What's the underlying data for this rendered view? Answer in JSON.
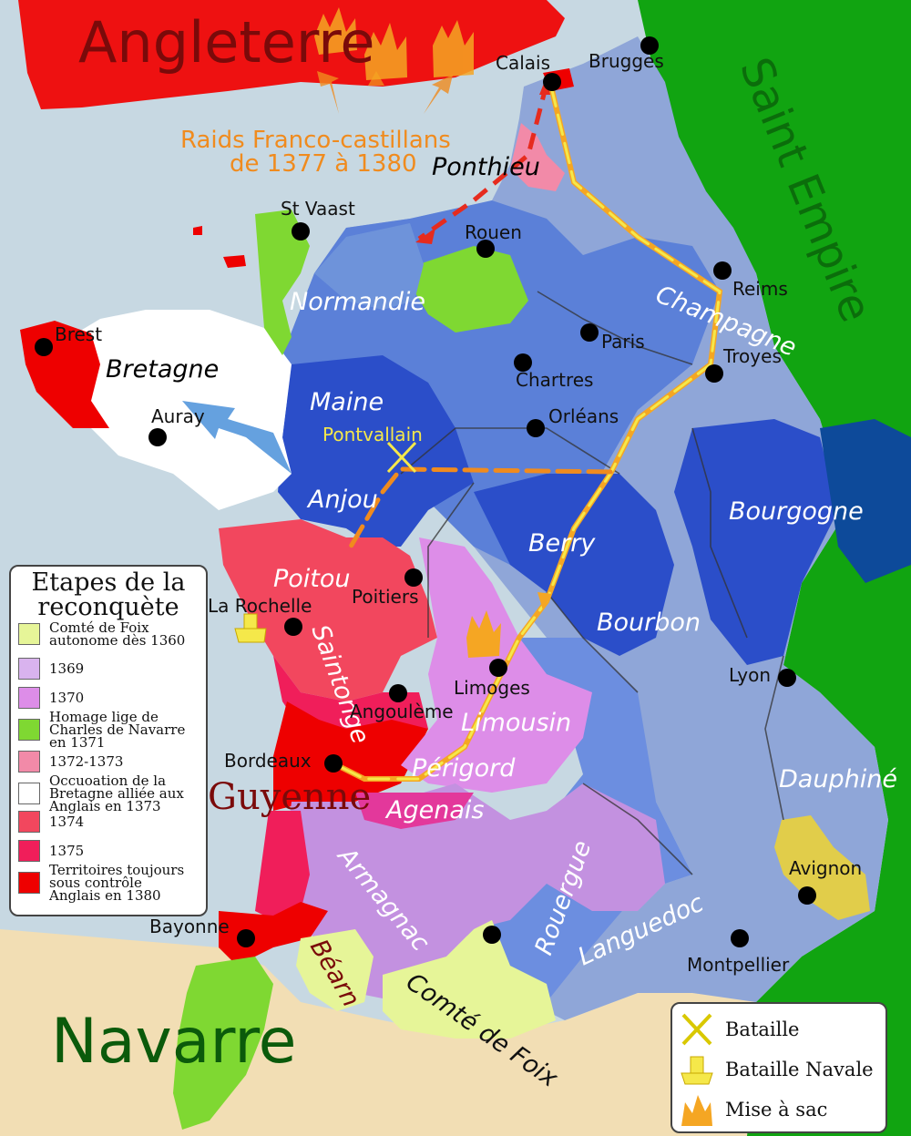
{
  "title_big": "Angleterre",
  "raids_line1": "Raids Franco-castillans",
  "raids_line2": "de 1377 à 1380",
  "empire": "Saint Empire",
  "navarre": "Navarre",
  "guyenne": "Guyenne",
  "regions": {
    "ponthieu": "Ponthieu",
    "normandie": "Normandie",
    "bretagne": "Bretagne",
    "maine": "Maine",
    "anjou": "Anjou",
    "poitou": "Poitou",
    "saintonge": "Saintonge",
    "champagne": "Champagne",
    "bourgogne": "Bourgogne",
    "berry": "Berry",
    "bourbon": "Bourbon",
    "limousin": "Limousin",
    "perigord": "Périgord",
    "agenais": "Agenais",
    "armagnac": "Armagnac",
    "rouergue": "Rouergue",
    "languedoc": "Languedoc",
    "dauphine": "Dauphiné",
    "bearn": "Béarn",
    "foix": "Comté de Foix"
  },
  "cities": {
    "calais": "Calais",
    "brugges": "Brugges",
    "st_vaast": "St Vaast",
    "rouen": "Rouen",
    "reims": "Reims",
    "paris": "Paris",
    "troyes": "Troyes",
    "chartres": "Chartres",
    "brest": "Brest",
    "auray": "Auray",
    "orleans": "Orléans",
    "pontvallain": "Pontvallain",
    "poitiers": "Poitiers",
    "la_rochelle": "La Rochelle",
    "limoges": "Limoges",
    "angouleme": "Angoulème",
    "lyon": "Lyon",
    "bordeaux": "Bordeaux",
    "avignon": "Avignon",
    "bayonne": "Bayonne",
    "montpellier": "Montpellier"
  },
  "legend": {
    "title_line1": "Etapes de la",
    "title_line2": "reconquète",
    "items": [
      {
        "color": "#e6f598",
        "label": "Comté de Foix\nautonome dès 1360"
      },
      {
        "color": "#d9b3ee",
        "label": "1369"
      },
      {
        "color": "#dd8de8",
        "label": "1370"
      },
      {
        "color": "#7fd832",
        "label": "Homage lige  de\nCharles de Navarre\nen 1371"
      },
      {
        "color": "#f28aa8",
        "label": "1372-1373"
      },
      {
        "color": "#ffffff",
        "label": "Occuoation de la\nBretagne alliée aux\nAnglais en 1373"
      },
      {
        "color": "#f2475e",
        "label": "1374"
      },
      {
        "color": "#f01e5a",
        "label": "1375"
      },
      {
        "color": "#ee0000",
        "label": "Territoires toujours\nsous contrôle\nAnglais en 1380"
      }
    ]
  },
  "key": {
    "battle": "Bataille",
    "naval": "Bataille Navale",
    "sack": "Mise à sac"
  },
  "colors": {
    "sea": "#c7d8e2",
    "england": "#ee1111",
    "empire": "#11a411",
    "navarre": "#f2deb4",
    "royal_light": "#8fa6d8",
    "royal_mid": "#5b80d8",
    "royal_dark": "#2b4ec9",
    "burgundy": "#0d4a9a",
    "route": "#f5a623"
  }
}
